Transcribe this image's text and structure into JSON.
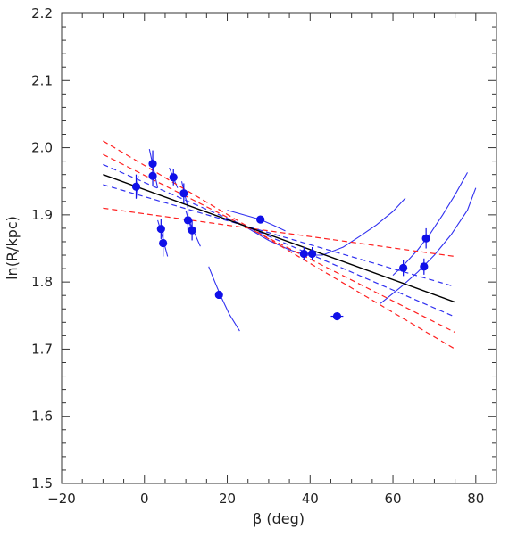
{
  "chart_data": {
    "type": "scatter",
    "title": "",
    "xlabel": "β (deg)",
    "ylabel": "ln(R/kpc)",
    "xlim": [
      -20,
      85
    ],
    "ylim": [
      1.5,
      2.2
    ],
    "xticks": [
      -20,
      0,
      20,
      40,
      60,
      80
    ],
    "xtick_labels": [
      "−20",
      "0",
      "20",
      "40",
      "60",
      "80"
    ],
    "yticks": [
      1.5,
      1.6,
      1.7,
      1.8,
      1.9,
      2.0,
      2.1,
      2.2
    ],
    "ytick_labels": [
      "1.5",
      "1.6",
      "1.7",
      "1.8",
      "1.9",
      "2.0",
      "2.1",
      "2.2"
    ],
    "grid": false,
    "colors": {
      "points": "#1010e8",
      "fit": "#000000",
      "blue_dashed": "#3030f0",
      "red_dashed": "#ff2020"
    },
    "points": [
      {
        "x": -2,
        "y": 1.942,
        "yerr": 0.018
      },
      {
        "x": 2,
        "y": 1.976,
        "yerr": 0.02
      },
      {
        "x": 2,
        "y": 1.958,
        "yerr": 0.015
      },
      {
        "x": 4,
        "y": 1.879,
        "yerr": 0.015
      },
      {
        "x": 4.5,
        "y": 1.858,
        "yerr": 0.02
      },
      {
        "x": 7,
        "y": 1.956,
        "yerr": 0.012
      },
      {
        "x": 9.5,
        "y": 1.932,
        "yerr": 0.015
      },
      {
        "x": 10.5,
        "y": 1.892,
        "yerr": 0.015
      },
      {
        "x": 11.5,
        "y": 1.877,
        "yerr": 0.015
      },
      {
        "x": 18,
        "y": 1.781,
        "yerr": 0.0
      },
      {
        "x": 28,
        "y": 1.893,
        "yerr": 0.0
      },
      {
        "x": 38.5,
        "y": 1.842,
        "yerr": 0.01
      },
      {
        "x": 40.5,
        "y": 1.842,
        "yerr": 0.01
      },
      {
        "x": 46.5,
        "y": 1.749,
        "yerr": 0.0,
        "xerr": 1.5
      },
      {
        "x": 62.5,
        "y": 1.821,
        "yerr": 0.012
      },
      {
        "x": 68,
        "y": 1.865,
        "yerr": 0.015
      },
      {
        "x": 67.5,
        "y": 1.823,
        "yerr": 0.012
      }
    ],
    "tracks": [
      {
        "x": [
          -2,
          -1.5
        ],
        "y": [
          1.925,
          1.958
        ]
      },
      {
        "x": [
          1.2,
          3.2
        ],
        "y": [
          1.998,
          1.94
        ]
      },
      {
        "x": [
          3.2,
          4.8
        ],
        "y": [
          1.892,
          1.858
        ]
      },
      {
        "x": [
          4,
          5.6
        ],
        "y": [
          1.875,
          1.838
        ]
      },
      {
        "x": [
          6,
          8
        ],
        "y": [
          1.97,
          1.94
        ]
      },
      {
        "x": [
          9,
          10.5
        ],
        "y": [
          1.95,
          1.91
        ]
      },
      {
        "x": [
          10,
          11.5
        ],
        "y": [
          1.906,
          1.875
        ]
      },
      {
        "x": [
          10.5,
          13.5
        ],
        "y": [
          1.895,
          1.853
        ]
      },
      {
        "x": [
          15.5,
          17,
          18.5,
          20.5,
          23
        ],
        "y": [
          1.823,
          1.8,
          1.778,
          1.752,
          1.727
        ]
      },
      {
        "x": [
          20,
          24,
          28,
          31,
          34
        ],
        "y": [
          1.907,
          1.9,
          1.893,
          1.885,
          1.876
        ]
      },
      {
        "x": [
          25,
          30,
          35,
          39,
          43,
          48,
          52,
          56,
          60,
          63
        ],
        "y": [
          1.88,
          1.862,
          1.848,
          1.84,
          1.84,
          1.852,
          1.868,
          1.885,
          1.905,
          1.925
        ]
      },
      {
        "x": [
          60,
          63,
          66,
          69,
          72,
          75,
          78
        ],
        "y": [
          1.81,
          1.828,
          1.848,
          1.872,
          1.9,
          1.93,
          1.963
        ]
      },
      {
        "x": [
          57,
          62,
          66,
          70,
          74,
          78,
          80
        ],
        "y": [
          1.768,
          1.793,
          1.815,
          1.84,
          1.87,
          1.907,
          1.94
        ]
      }
    ],
    "fit_line": {
      "x": [
        -10,
        75
      ],
      "y": [
        1.96,
        1.77
      ]
    },
    "blue_dashed": [
      {
        "x": [
          -10,
          75
        ],
        "y": [
          1.975,
          1.748
        ]
      },
      {
        "x": [
          -10,
          75
        ],
        "y": [
          1.945,
          1.793
        ]
      }
    ],
    "red_dashed": [
      {
        "x": [
          -10,
          75
        ],
        "y": [
          2.01,
          1.7
        ]
      },
      {
        "x": [
          -10,
          75
        ],
        "y": [
          1.91,
          1.838
        ]
      },
      {
        "x": [
          -10,
          75
        ],
        "y": [
          1.99,
          1.725
        ]
      }
    ]
  }
}
